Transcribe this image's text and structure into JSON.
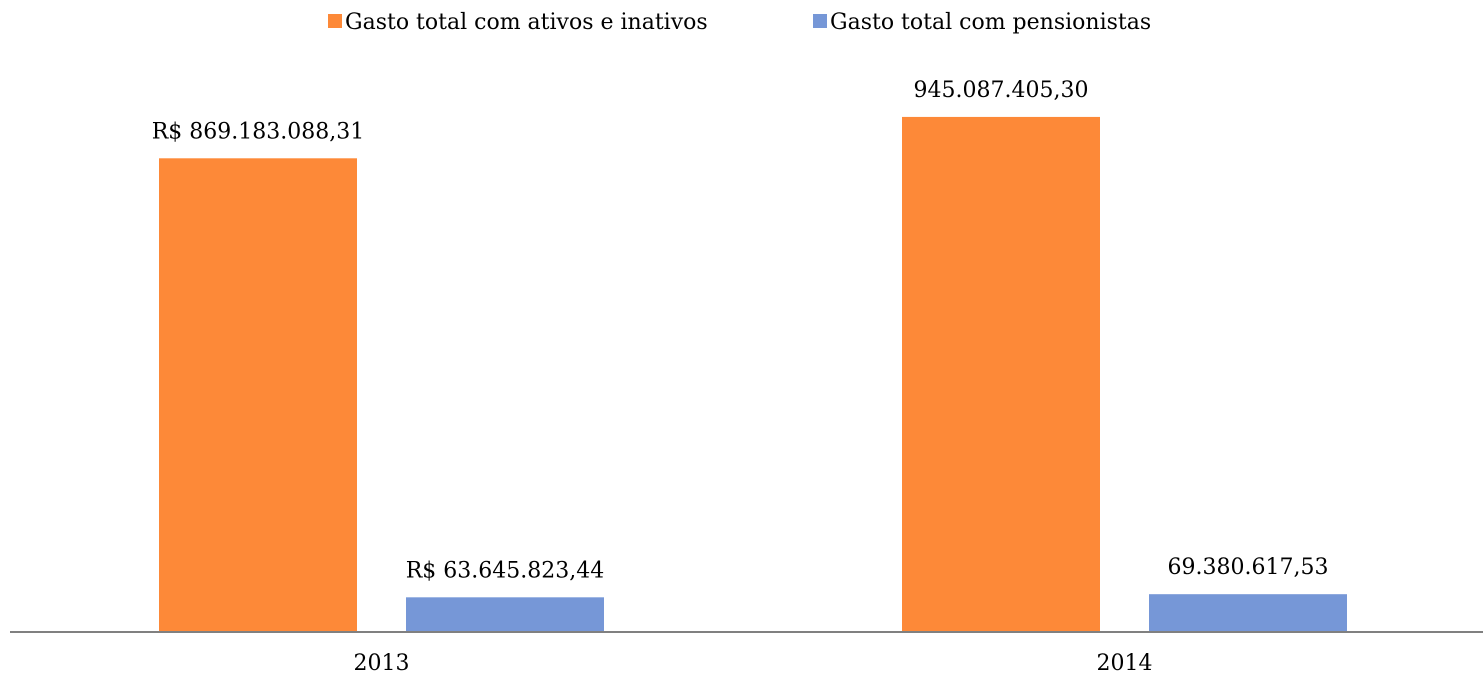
{
  "chart_data": {
    "type": "bar",
    "categories": [
      "2013",
      "2014"
    ],
    "series": [
      {
        "name": "Gasto total com ativos e inativos",
        "color": "#fd8938",
        "values": [
          869183088.31,
          945087405.3
        ],
        "labels": [
          "R$ 869.183.088,31",
          "945.087.405,30"
        ]
      },
      {
        "name": "Gasto total com pensionistas",
        "color": "#7697d7",
        "values": [
          63645823.44,
          69380617.53
        ],
        "labels": [
          "R$ 63.645.823,44",
          "69.380.617,53"
        ]
      }
    ],
    "ylim": [
      0,
      1000000000
    ],
    "grid": false,
    "legend_position": "top-center",
    "axis_color": "#808080"
  }
}
